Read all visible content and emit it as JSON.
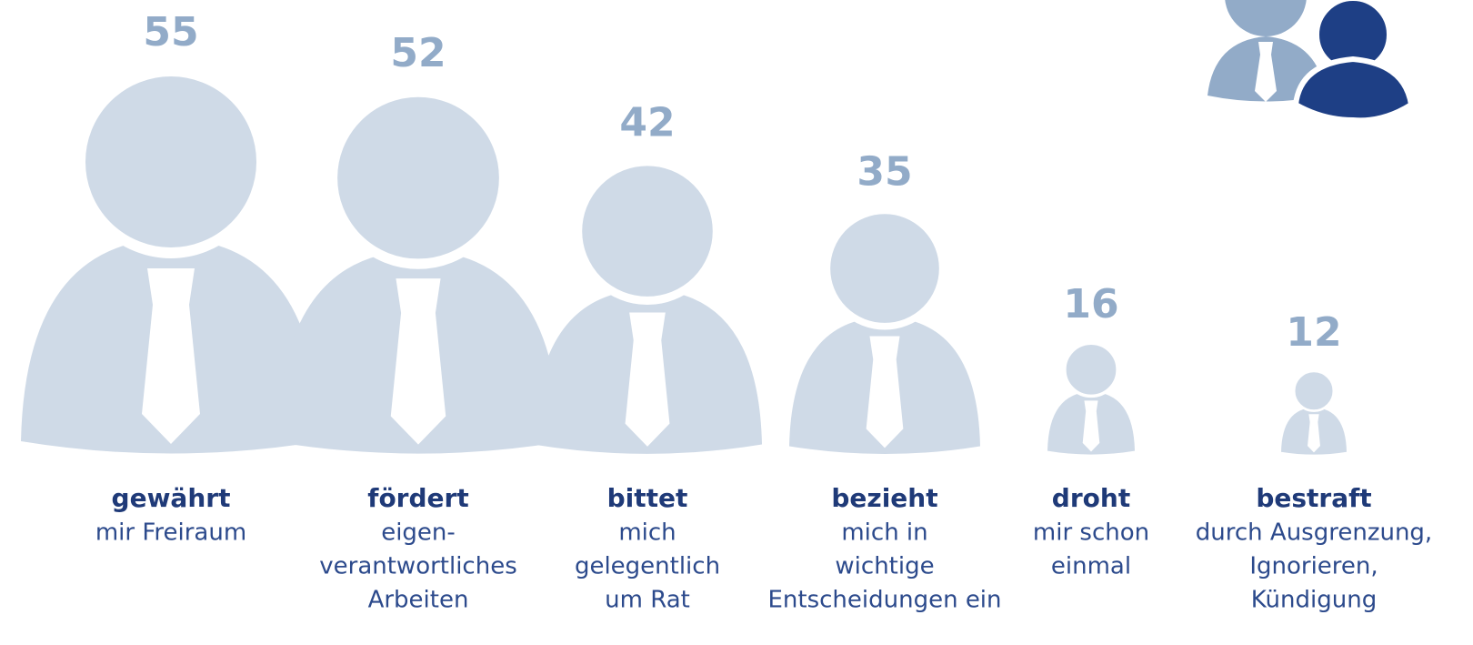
{
  "chart_data": {
    "type": "pictogram",
    "categories": [
      "gewährt",
      "fördert",
      "bittet",
      "bezieht",
      "droht",
      "bestraft"
    ],
    "descriptions": [
      [
        "mir Freiraum"
      ],
      [
        "eigen-",
        "verantwortliches",
        "Arbeiten"
      ],
      [
        "mich",
        "gelegentlich",
        "um Rat"
      ],
      [
        "mich in",
        "wichtige",
        "Entscheidungen ein"
      ],
      [
        "mir schon",
        "einmal"
      ],
      [
        "durch Ausgrenzung,",
        "Ignorieren,",
        "Kündigung"
      ]
    ],
    "values": [
      55,
      52,
      42,
      35,
      16,
      12
    ],
    "color": "#cfdae7"
  }
}
